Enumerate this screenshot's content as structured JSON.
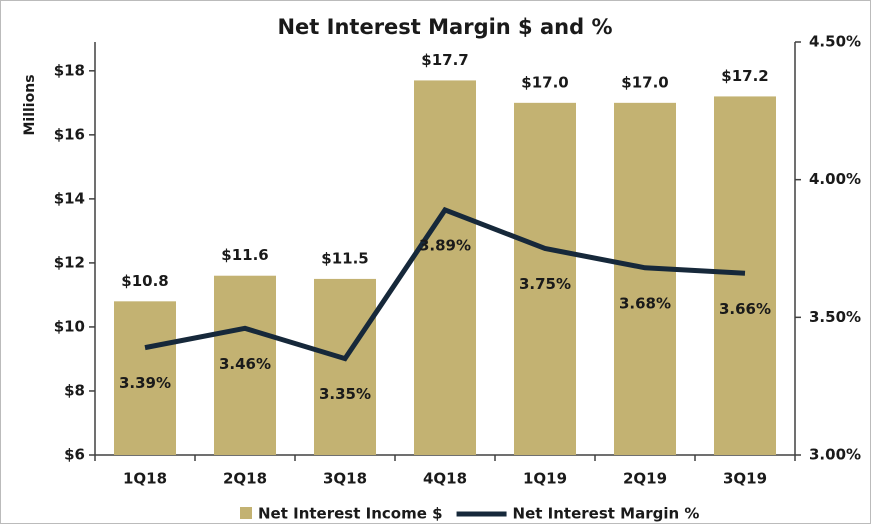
{
  "chart_data": {
    "type": "bar_line",
    "title": "Net Interest Margin $ and %",
    "y_label": "Millions",
    "categories": [
      "1Q18",
      "2Q18",
      "3Q18",
      "4Q18",
      "1Q19",
      "2Q19",
      "3Q19"
    ],
    "series": [
      {
        "name": "Net Interest Income $",
        "type": "bar",
        "color": "#c3b272",
        "values": [
          10.8,
          11.6,
          11.5,
          17.7,
          17.0,
          17.0,
          17.2
        ],
        "value_labels": [
          "$10.8",
          "$11.6",
          "$11.5",
          "$17.7",
          "$17.0",
          "$17.0",
          "$17.2"
        ]
      },
      {
        "name": "Net Interest Margin %",
        "type": "line",
        "axis": "y2",
        "color": "#16283a",
        "values": [
          3.39,
          3.46,
          3.35,
          3.89,
          3.75,
          3.68,
          3.66
        ],
        "value_labels": [
          "3.39%",
          "3.46%",
          "3.35%",
          "3.89%",
          "3.75%",
          "3.68%",
          "3.66%"
        ]
      }
    ],
    "ylim": [
      6,
      18.9
    ],
    "yticks": [
      {
        "value": 6,
        "label": "$6"
      },
      {
        "value": 8,
        "label": "$8"
      },
      {
        "value": 10,
        "label": "$10"
      },
      {
        "value": 12,
        "label": "$12"
      },
      {
        "value": 14,
        "label": "$14"
      },
      {
        "value": 16,
        "label": "$16"
      },
      {
        "value": 18,
        "label": "$18"
      }
    ],
    "y2lim": [
      3,
      4.5
    ],
    "y2ticks": [
      {
        "value": 3,
        "label": "3.00%"
      },
      {
        "value": 3.5,
        "label": "3.50%"
      },
      {
        "value": 4,
        "label": "4.00%"
      },
      {
        "value": 4.5,
        "label": "4.50%"
      }
    ],
    "grid": false,
    "legend": "bottom"
  }
}
